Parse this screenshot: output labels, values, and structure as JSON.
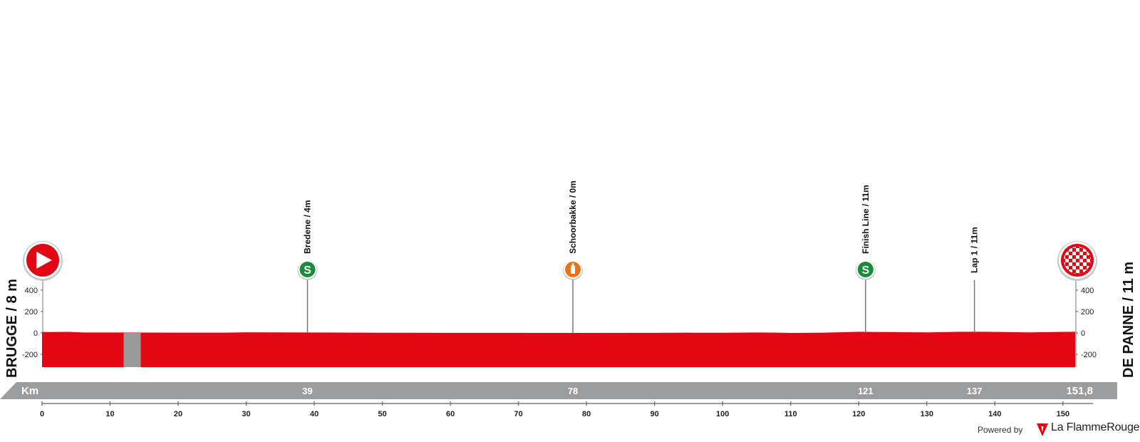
{
  "chart_data": {
    "type": "area",
    "start": {
      "name": "BRUGGE / 8 m"
    },
    "finish": {
      "name": "DE PANNE / 11 m"
    },
    "axis_label": "Km",
    "ylim": [
      -290,
      500
    ],
    "y_ticks": [
      "400",
      "200",
      "0",
      "-200"
    ],
    "y_tick_values": [
      400,
      200,
      0,
      -200
    ],
    "xlim": [
      0,
      151.8
    ],
    "x_ticks": [
      "0",
      "10",
      "20",
      "30",
      "40",
      "50",
      "60",
      "70",
      "80",
      "90",
      "100",
      "110",
      "120",
      "130",
      "140",
      "150"
    ],
    "x_tick_values": [
      0,
      10,
      20,
      30,
      40,
      50,
      60,
      70,
      80,
      90,
      100,
      110,
      120,
      130,
      140,
      150
    ],
    "km_markers": [
      {
        "km": 39,
        "label": "39"
      },
      {
        "km": 78,
        "label": "78"
      },
      {
        "km": 121,
        "label": "121"
      },
      {
        "km": 137,
        "label": "137"
      },
      {
        "km": 151.8,
        "label": "151,8"
      }
    ],
    "waypoints": [
      {
        "km": 39,
        "label": "Bredene / 4m",
        "icon": "sprint-icon"
      },
      {
        "km": 78,
        "label": "Schoorbakke / 0m",
        "icon": "feed-zone-icon"
      },
      {
        "km": 121,
        "label": "Finish Line / 11m",
        "icon": "sprint-icon"
      },
      {
        "km": 137,
        "label": "Lap 1 / 11m",
        "icon": "none"
      }
    ],
    "neutral_zone_km": [
      12,
      14.5
    ],
    "elevation": {
      "x": [
        0,
        4,
        6,
        10,
        20,
        27,
        30,
        39,
        50,
        60,
        70,
        78,
        90,
        95,
        96,
        100,
        105,
        108,
        110,
        115,
        120,
        122,
        125,
        130,
        135,
        138,
        140,
        145,
        150,
        151.8
      ],
      "y": [
        8,
        10,
        4,
        4,
        3,
        3,
        6,
        4,
        2,
        1,
        1,
        0,
        1,
        3,
        2,
        2,
        4,
        3,
        0,
        3,
        11,
        9,
        8,
        5,
        11,
        11,
        10,
        5,
        10,
        11
      ]
    },
    "colors": {
      "profile": "#e30613",
      "km_bar": "#9b9c9e",
      "sprint": "#1a8a3c",
      "feed": "#e8731a",
      "neutral": "#9a9a9a"
    }
  },
  "footer": {
    "powered_by": "Powered by",
    "brand": "La FlammeRouge"
  }
}
